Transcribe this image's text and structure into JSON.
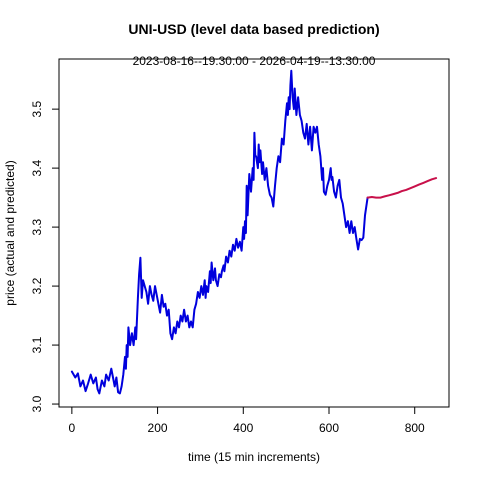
{
  "chart_data": {
    "type": "line",
    "title": "UNI-USD (level data based prediction)",
    "subtitle": "2023-08-16--19:30:00  -  2026-04-19--13:30:00",
    "xlabel": "time (15 min increments)",
    "ylabel": "price (actual and predicted)",
    "xlim": [
      -30,
      880
    ],
    "ylim": [
      2.995,
      3.585
    ],
    "x_ticks": [
      0,
      200,
      400,
      600,
      800
    ],
    "x_tick_labels": [
      "0",
      "200",
      "400",
      "600",
      "800"
    ],
    "y_ticks": [
      3.0,
      3.1,
      3.2,
      3.3,
      3.4,
      3.5
    ],
    "y_tick_labels": [
      "3.0",
      "3.1",
      "3.2",
      "3.3",
      "3.4",
      "3.5"
    ],
    "grid": false,
    "legend": "none",
    "series": [
      {
        "role": "actual",
        "color": "#0000dd",
        "points": [
          [
            0,
            3.055
          ],
          [
            8,
            3.045
          ],
          [
            14,
            3.052
          ],
          [
            20,
            3.03
          ],
          [
            26,
            3.04
          ],
          [
            32,
            3.022
          ],
          [
            38,
            3.035
          ],
          [
            44,
            3.05
          ],
          [
            50,
            3.035
          ],
          [
            56,
            3.045
          ],
          [
            60,
            3.025
          ],
          [
            64,
            3.018
          ],
          [
            70,
            3.04
          ],
          [
            76,
            3.03
          ],
          [
            80,
            3.05
          ],
          [
            86,
            3.04
          ],
          [
            92,
            3.06
          ],
          [
            96,
            3.045
          ],
          [
            100,
            3.03
          ],
          [
            104,
            3.045
          ],
          [
            108,
            3.02
          ],
          [
            112,
            3.018
          ],
          [
            116,
            3.03
          ],
          [
            120,
            3.05
          ],
          [
            124,
            3.08
          ],
          [
            126,
            3.06
          ],
          [
            128,
            3.1
          ],
          [
            130,
            3.08
          ],
          [
            132,
            3.13
          ],
          [
            136,
            3.1
          ],
          [
            140,
            3.12
          ],
          [
            144,
            3.1
          ],
          [
            148,
            3.13
          ],
          [
            150,
            3.11
          ],
          [
            154,
            3.18
          ],
          [
            157,
            3.22
          ],
          [
            160,
            3.248
          ],
          [
            163,
            3.18
          ],
          [
            166,
            3.21
          ],
          [
            170,
            3.2
          ],
          [
            174,
            3.19
          ],
          [
            178,
            3.17
          ],
          [
            182,
            3.2
          ],
          [
            186,
            3.185
          ],
          [
            190,
            3.175
          ],
          [
            194,
            3.2
          ],
          [
            198,
            3.185
          ],
          [
            202,
            3.17
          ],
          [
            206,
            3.155
          ],
          [
            210,
            3.185
          ],
          [
            214,
            3.165
          ],
          [
            218,
            3.17
          ],
          [
            222,
            3.15
          ],
          [
            226,
            3.16
          ],
          [
            230,
            3.12
          ],
          [
            234,
            3.11
          ],
          [
            238,
            3.13
          ],
          [
            242,
            3.12
          ],
          [
            246,
            3.14
          ],
          [
            250,
            3.13
          ],
          [
            254,
            3.15
          ],
          [
            258,
            3.14
          ],
          [
            262,
            3.16
          ],
          [
            266,
            3.14
          ],
          [
            270,
            3.15
          ],
          [
            274,
            3.13
          ],
          [
            278,
            3.14
          ],
          [
            282,
            3.13
          ],
          [
            286,
            3.16
          ],
          [
            290,
            3.17
          ],
          [
            294,
            3.19
          ],
          [
            298,
            3.18
          ],
          [
            302,
            3.2
          ],
          [
            306,
            3.185
          ],
          [
            310,
            3.21
          ],
          [
            312,
            3.18
          ],
          [
            314,
            3.2
          ],
          [
            318,
            3.19
          ],
          [
            322,
            3.225
          ],
          [
            324,
            3.205
          ],
          [
            326,
            3.24
          ],
          [
            330,
            3.21
          ],
          [
            334,
            3.23
          ],
          [
            336,
            3.21
          ],
          [
            340,
            3.2
          ],
          [
            344,
            3.22
          ],
          [
            348,
            3.215
          ],
          [
            350,
            3.225
          ],
          [
            354,
            3.235
          ],
          [
            356,
            3.225
          ],
          [
            360,
            3.25
          ],
          [
            364,
            3.24
          ],
          [
            368,
            3.26
          ],
          [
            372,
            3.25
          ],
          [
            376,
            3.27
          ],
          [
            380,
            3.26
          ],
          [
            384,
            3.28
          ],
          [
            388,
            3.265
          ],
          [
            392,
            3.275
          ],
          [
            396,
            3.26
          ],
          [
            400,
            3.3
          ],
          [
            402,
            3.28
          ],
          [
            404,
            3.31
          ],
          [
            406,
            3.29
          ],
          [
            408,
            3.37
          ],
          [
            410,
            3.32
          ],
          [
            414,
            3.39
          ],
          [
            418,
            3.36
          ],
          [
            422,
            3.4
          ],
          [
            424,
            3.38
          ],
          [
            426,
            3.46
          ],
          [
            428,
            3.42
          ],
          [
            430,
            3.42
          ],
          [
            434,
            3.4
          ],
          [
            436,
            3.44
          ],
          [
            438,
            3.41
          ],
          [
            440,
            3.43
          ],
          [
            444,
            3.39
          ],
          [
            446,
            3.41
          ],
          [
            450,
            3.38
          ],
          [
            454,
            3.4
          ],
          [
            458,
            3.37
          ],
          [
            462,
            3.355
          ],
          [
            466,
            3.35
          ],
          [
            470,
            3.335
          ],
          [
            474,
            3.37
          ],
          [
            478,
            3.4
          ],
          [
            482,
            3.42
          ],
          [
            486,
            3.41
          ],
          [
            490,
            3.45
          ],
          [
            494,
            3.44
          ],
          [
            498,
            3.48
          ],
          [
            502,
            3.51
          ],
          [
            504,
            3.49
          ],
          [
            506,
            3.52
          ],
          [
            508,
            3.5
          ],
          [
            510,
            3.54
          ],
          [
            512,
            3.565
          ],
          [
            515,
            3.52
          ],
          [
            518,
            3.5
          ],
          [
            520,
            3.535
          ],
          [
            524,
            3.49
          ],
          [
            528,
            3.52
          ],
          [
            532,
            3.49
          ],
          [
            536,
            3.48
          ],
          [
            540,
            3.46
          ],
          [
            544,
            3.45
          ],
          [
            548,
            3.475
          ],
          [
            552,
            3.44
          ],
          [
            556,
            3.47
          ],
          [
            560,
            3.43
          ],
          [
            564,
            3.47
          ],
          [
            568,
            3.46
          ],
          [
            572,
            3.47
          ],
          [
            576,
            3.44
          ],
          [
            580,
            3.42
          ],
          [
            584,
            3.38
          ],
          [
            586,
            3.4
          ],
          [
            588,
            3.36
          ],
          [
            592,
            3.355
          ],
          [
            596,
            3.37
          ],
          [
            600,
            3.38
          ],
          [
            604,
            3.4
          ],
          [
            606,
            3.38
          ],
          [
            608,
            3.385
          ],
          [
            612,
            3.36
          ],
          [
            616,
            3.35
          ],
          [
            620,
            3.37
          ],
          [
            624,
            3.38
          ],
          [
            628,
            3.35
          ],
          [
            632,
            3.34
          ],
          [
            636,
            3.32
          ],
          [
            640,
            3.3
          ],
          [
            644,
            3.31
          ],
          [
            648,
            3.29
          ],
          [
            652,
            3.31
          ],
          [
            656,
            3.29
          ],
          [
            660,
            3.3
          ],
          [
            664,
            3.28
          ],
          [
            668,
            3.262
          ],
          [
            672,
            3.28
          ],
          [
            676,
            3.278
          ],
          [
            680,
            3.282
          ],
          [
            684,
            3.32
          ],
          [
            690,
            3.35
          ]
        ]
      },
      {
        "role": "predicted",
        "color": "#c8104a",
        "points": [
          [
            690,
            3.35
          ],
          [
            700,
            3.351
          ],
          [
            710,
            3.35
          ],
          [
            720,
            3.35
          ],
          [
            730,
            3.352
          ],
          [
            740,
            3.354
          ],
          [
            750,
            3.356
          ],
          [
            760,
            3.358
          ],
          [
            770,
            3.361
          ],
          [
            780,
            3.363
          ],
          [
            790,
            3.366
          ],
          [
            800,
            3.369
          ],
          [
            810,
            3.372
          ],
          [
            820,
            3.375
          ],
          [
            830,
            3.378
          ],
          [
            840,
            3.381
          ],
          [
            850,
            3.383
          ]
        ]
      }
    ]
  }
}
